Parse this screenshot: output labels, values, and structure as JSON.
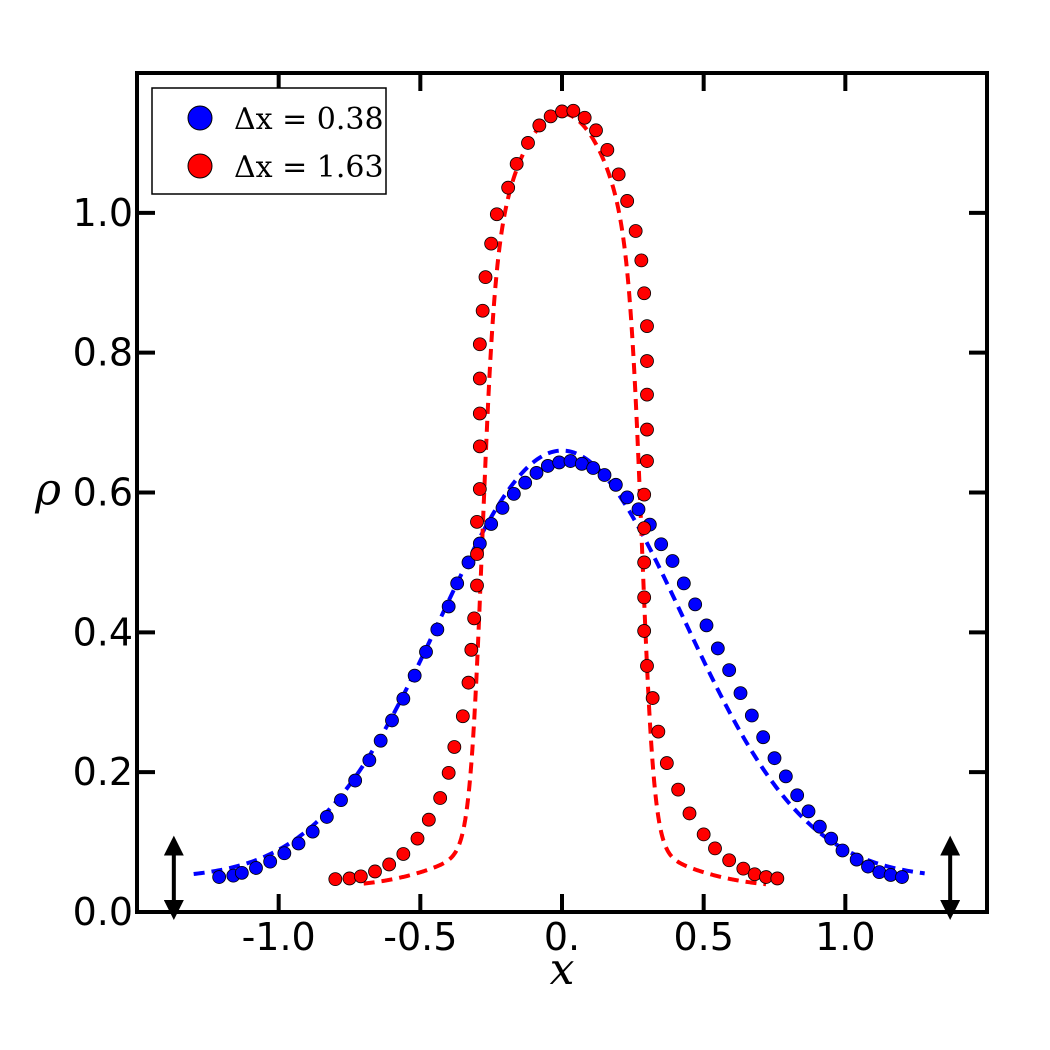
{
  "chart_data": {
    "type": "scatter",
    "xlabel": "x",
    "ylabel": "ρ",
    "xlim": [
      -1.5,
      1.5
    ],
    "ylim": [
      0.0,
      1.2
    ],
    "xticks": [
      {
        "value": -1.0,
        "label": "-1.0"
      },
      {
        "value": -0.5,
        "label": "-0.5"
      },
      {
        "value": 0.0,
        "label": "0."
      },
      {
        "value": 0.5,
        "label": "0.5"
      },
      {
        "value": 1.0,
        "label": "1.0"
      }
    ],
    "yticks": [
      {
        "value": 0.0,
        "label": "0.0"
      },
      {
        "value": 0.2,
        "label": "0.2"
      },
      {
        "value": 0.4,
        "label": "0.4"
      },
      {
        "value": 0.6,
        "label": "0.6"
      },
      {
        "value": 0.8,
        "label": "0.8"
      },
      {
        "value": 1.0,
        "label": "1.0"
      }
    ],
    "legend_position": "top-left",
    "grid": false,
    "series": [
      {
        "name": "Δx = 0.38",
        "color": "#0000ff",
        "marker": "circle",
        "points": [
          [
            -1.21,
            0.05
          ],
          [
            -1.16,
            0.052
          ],
          [
            -1.13,
            0.056
          ],
          [
            -1.08,
            0.063
          ],
          [
            -1.03,
            0.072
          ],
          [
            -0.98,
            0.084
          ],
          [
            -0.93,
            0.098
          ],
          [
            -0.88,
            0.115
          ],
          [
            -0.83,
            0.136
          ],
          [
            -0.78,
            0.16
          ],
          [
            -0.73,
            0.188
          ],
          [
            -0.68,
            0.217
          ],
          [
            -0.64,
            0.245
          ],
          [
            -0.6,
            0.274
          ],
          [
            -0.56,
            0.305
          ],
          [
            -0.52,
            0.338
          ],
          [
            -0.48,
            0.372
          ],
          [
            -0.44,
            0.404
          ],
          [
            -0.4,
            0.437
          ],
          [
            -0.37,
            0.47
          ],
          [
            -0.33,
            0.5
          ],
          [
            -0.29,
            0.527
          ],
          [
            -0.25,
            0.555
          ],
          [
            -0.21,
            0.578
          ],
          [
            -0.17,
            0.598
          ],
          [
            -0.13,
            0.614
          ],
          [
            -0.09,
            0.628
          ],
          [
            -0.05,
            0.638
          ],
          [
            -0.01,
            0.643
          ],
          [
            0.03,
            0.645
          ],
          [
            0.07,
            0.641
          ],
          [
            0.11,
            0.635
          ],
          [
            0.15,
            0.625
          ],
          [
            0.19,
            0.611
          ],
          [
            0.23,
            0.593
          ],
          [
            0.27,
            0.576
          ],
          [
            0.31,
            0.554
          ],
          [
            0.35,
            0.526
          ],
          [
            0.39,
            0.502
          ],
          [
            0.43,
            0.47
          ],
          [
            0.47,
            0.44
          ],
          [
            0.51,
            0.41
          ],
          [
            0.55,
            0.377
          ],
          [
            0.59,
            0.346
          ],
          [
            0.63,
            0.313
          ],
          [
            0.67,
            0.281
          ],
          [
            0.71,
            0.25
          ],
          [
            0.75,
            0.22
          ],
          [
            0.79,
            0.194
          ],
          [
            0.83,
            0.167
          ],
          [
            0.87,
            0.144
          ],
          [
            0.91,
            0.122
          ],
          [
            0.95,
            0.105
          ],
          [
            0.99,
            0.088
          ],
          [
            1.04,
            0.075
          ],
          [
            1.08,
            0.065
          ],
          [
            1.12,
            0.057
          ],
          [
            1.16,
            0.053
          ],
          [
            1.2,
            0.05
          ]
        ],
        "fit_curve": {
          "style": "dashed",
          "amplitude": 0.612,
          "sigma": 0.43,
          "offset": 0.048,
          "x_range": [
            -1.3,
            1.28
          ]
        }
      },
      {
        "name": "Δx = 1.63",
        "color": "#ff0000",
        "marker": "circle",
        "points": [
          [
            -0.8,
            0.047
          ],
          [
            -0.75,
            0.048
          ],
          [
            -0.71,
            0.051
          ],
          [
            -0.66,
            0.058
          ],
          [
            -0.61,
            0.068
          ],
          [
            -0.56,
            0.083
          ],
          [
            -0.51,
            0.105
          ],
          [
            -0.47,
            0.132
          ],
          [
            -0.43,
            0.163
          ],
          [
            -0.4,
            0.199
          ],
          [
            -0.38,
            0.236
          ],
          [
            -0.35,
            0.28
          ],
          [
            -0.33,
            0.328
          ],
          [
            -0.32,
            0.375
          ],
          [
            -0.31,
            0.42
          ],
          [
            -0.3,
            0.467
          ],
          [
            -0.3,
            0.512
          ],
          [
            -0.3,
            0.558
          ],
          [
            -0.29,
            0.605
          ],
          [
            -0.29,
            0.666
          ],
          [
            -0.29,
            0.713
          ],
          [
            -0.29,
            0.763
          ],
          [
            -0.29,
            0.812
          ],
          [
            -0.28,
            0.86
          ],
          [
            -0.27,
            0.908
          ],
          [
            -0.25,
            0.956
          ],
          [
            -0.23,
            0.998
          ],
          [
            -0.19,
            1.036
          ],
          [
            -0.16,
            1.07
          ],
          [
            -0.12,
            1.1
          ],
          [
            -0.08,
            1.125
          ],
          [
            -0.04,
            1.138
          ],
          [
            0.0,
            1.145
          ],
          [
            0.04,
            1.146
          ],
          [
            0.08,
            1.136
          ],
          [
            0.12,
            1.118
          ],
          [
            0.16,
            1.09
          ],
          [
            0.2,
            1.055
          ],
          [
            0.23,
            1.017
          ],
          [
            0.26,
            0.974
          ],
          [
            0.28,
            0.932
          ],
          [
            0.29,
            0.885
          ],
          [
            0.3,
            0.838
          ],
          [
            0.3,
            0.788
          ],
          [
            0.3,
            0.74
          ],
          [
            0.3,
            0.69
          ],
          [
            0.3,
            0.645
          ],
          [
            0.29,
            0.597
          ],
          [
            0.29,
            0.549
          ],
          [
            0.29,
            0.5
          ],
          [
            0.29,
            0.45
          ],
          [
            0.29,
            0.402
          ],
          [
            0.3,
            0.352
          ],
          [
            0.32,
            0.306
          ],
          [
            0.34,
            0.258
          ],
          [
            0.37,
            0.213
          ],
          [
            0.41,
            0.175
          ],
          [
            0.45,
            0.141
          ],
          [
            0.5,
            0.111
          ],
          [
            0.54,
            0.091
          ],
          [
            0.59,
            0.074
          ],
          [
            0.64,
            0.062
          ],
          [
            0.68,
            0.054
          ],
          [
            0.72,
            0.05
          ],
          [
            0.76,
            0.048
          ]
        ],
        "fit_curve": {
          "style": "dashed",
          "amplitude": 1.107,
          "center": 0.0,
          "half_width": 0.285,
          "edge_width": 0.022,
          "offset": 0.035,
          "x_range": [
            -0.7,
            0.72
          ]
        }
      }
    ],
    "annotations": [
      {
        "type": "double-arrow",
        "x": -1.37,
        "y_from": 0.0,
        "y_to": 0.095
      },
      {
        "type": "double-arrow",
        "x": 1.37,
        "y_from": 0.0,
        "y_to": 0.095
      }
    ]
  }
}
